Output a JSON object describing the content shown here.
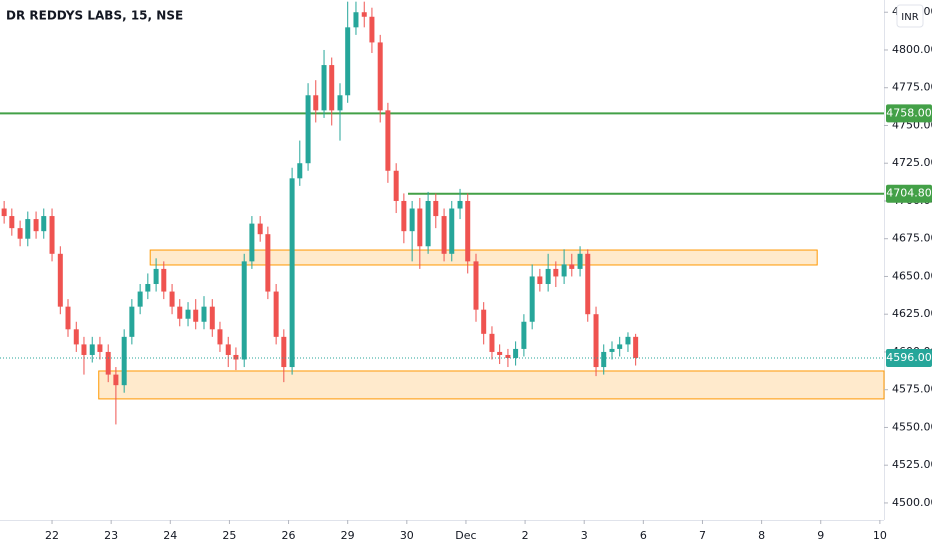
{
  "chart_data": {
    "type": "candlestick",
    "title": "DR REDDYS LABS, 15, NSE",
    "currency": "INR",
    "up_color": "#26a69a",
    "down_color": "#ef5350",
    "grid": false,
    "xlim": [
      -0.88,
      14.07
    ],
    "xticks": [
      {
        "value": 0,
        "label": "22"
      },
      {
        "value": 1,
        "label": "23"
      },
      {
        "value": 2,
        "label": "24"
      },
      {
        "value": 3,
        "label": "25"
      },
      {
        "value": 4,
        "label": "26"
      },
      {
        "value": 5,
        "label": "29"
      },
      {
        "value": 6,
        "label": "30"
      },
      {
        "value": 7,
        "label": "Dec"
      },
      {
        "value": 8,
        "label": "2"
      },
      {
        "value": 9,
        "label": "3"
      },
      {
        "value": 10,
        "label": "6"
      },
      {
        "value": 11,
        "label": "7"
      },
      {
        "value": 12,
        "label": "8"
      },
      {
        "value": 13,
        "label": "9"
      },
      {
        "value": 14,
        "label": "10"
      }
    ],
    "ylim": [
      4488.7,
      4833.1
    ],
    "yticks": [
      {
        "value": 4500,
        "label": "4500.00"
      },
      {
        "value": 4525,
        "label": "4525.00"
      },
      {
        "value": 4550,
        "label": "4550.00"
      },
      {
        "value": 4575,
        "label": "4575.00"
      },
      {
        "value": 4600,
        "label": "4600.00"
      },
      {
        "value": 4625,
        "label": "4625.00"
      },
      {
        "value": 4650,
        "label": "4650.00"
      },
      {
        "value": 4675,
        "label": "4675.00"
      },
      {
        "value": 4700,
        "label": "4700.00"
      },
      {
        "value": 4725,
        "label": "4725.00"
      },
      {
        "value": 4750,
        "label": "4750.00"
      },
      {
        "value": 4775,
        "label": "4775.00"
      },
      {
        "value": 4800,
        "label": "4800.00"
      },
      {
        "value": 4825,
        "label": "4825.00"
      }
    ],
    "x": [
      -0.81,
      -0.68,
      -0.54,
      -0.41,
      -0.27,
      -0.14,
      0.0,
      0.14,
      0.27,
      0.41,
      0.54,
      0.68,
      0.81,
      0.95,
      1.08,
      1.22,
      1.35,
      1.49,
      1.62,
      1.76,
      1.89,
      2.03,
      2.16,
      2.3,
      2.43,
      2.57,
      2.71,
      2.84,
      2.98,
      3.11,
      3.25,
      3.38,
      3.52,
      3.65,
      3.79,
      3.92,
      4.06,
      4.19,
      4.33,
      4.46,
      4.6,
      4.73,
      4.87,
      5.0,
      5.14,
      5.28,
      5.41,
      5.55,
      5.68,
      5.82,
      5.95,
      6.09,
      6.22,
      6.36,
      6.49,
      6.63,
      6.76,
      6.9,
      7.03,
      7.17,
      7.3,
      7.44,
      7.57,
      7.71,
      7.84,
      7.98,
      8.12,
      8.25,
      8.39,
      8.52,
      8.66,
      8.79,
      8.93,
      9.06,
      9.2,
      9.33,
      9.47,
      9.6,
      9.74,
      9.87
    ],
    "open": [
      4695,
      4690,
      4682,
      4675,
      4688,
      4680,
      4690,
      4665,
      4630,
      4615,
      4605,
      4598,
      4605,
      4600,
      4585,
      4578,
      4610,
      4630,
      4640,
      4645,
      4655,
      4640,
      4630,
      4622,
      4628,
      4620,
      4630,
      4615,
      4605,
      4598,
      4595,
      4660,
      4685,
      4678,
      4640,
      4610,
      4590,
      4715,
      4725,
      4770,
      4760,
      4790,
      4760,
      4770,
      4815,
      4825,
      4822,
      4805,
      4760,
      4720,
      4700,
      4680,
      4695,
      4670,
      4700,
      4690,
      4665,
      4695,
      4700,
      4660,
      4628,
      4612,
      4600,
      4598,
      4596,
      4602,
      4620,
      4650,
      4645,
      4655,
      4650,
      4658,
      4655,
      4665,
      4625,
      4590,
      4600,
      4602,
      4605,
      4610
    ],
    "high": [
      4700,
      4695,
      4687,
      4693,
      4693,
      4695,
      4695,
      4670,
      4635,
      4620,
      4610,
      4610,
      4610,
      4605,
      4590,
      4615,
      4635,
      4645,
      4652,
      4662,
      4660,
      4645,
      4635,
      4633,
      4635,
      4637,
      4635,
      4620,
      4610,
      4603,
      4665,
      4690,
      4690,
      4683,
      4645,
      4615,
      4722,
      4740,
      4778,
      4780,
      4800,
      4795,
      4778,
      4832,
      4832,
      4832,
      4828,
      4810,
      4765,
      4725,
      4705,
      4700,
      4702,
      4706,
      4705,
      4695,
      4700,
      4708,
      4705,
      4665,
      4633,
      4617,
      4605,
      4602,
      4607,
      4625,
      4658,
      4655,
      4665,
      4660,
      4668,
      4665,
      4670,
      4668,
      4630,
      4605,
      4607,
      4610,
      4613,
      4612
    ],
    "low": [
      4685,
      4677,
      4670,
      4670,
      4675,
      4675,
      4660,
      4625,
      4610,
      4600,
      4585,
      4593,
      4595,
      4580,
      4552,
      4573,
      4605,
      4625,
      4635,
      4640,
      4635,
      4625,
      4617,
      4617,
      4615,
      4615,
      4610,
      4600,
      4590,
      4588,
      4590,
      4655,
      4673,
      4635,
      4605,
      4580,
      4585,
      4710,
      4720,
      4752,
      4755,
      4750,
      4740,
      4765,
      4810,
      4815,
      4798,
      4752,
      4712,
      4692,
      4672,
      4660,
      4655,
      4665,
      4682,
      4660,
      4660,
      4688,
      4652,
      4620,
      4605,
      4595,
      4592,
      4590,
      4591,
      4597,
      4615,
      4640,
      4640,
      4643,
      4645,
      4650,
      4650,
      4620,
      4584,
      4585,
      4595,
      4597,
      4600,
      4591
    ],
    "close": [
      4690,
      4682,
      4675,
      4688,
      4680,
      4690,
      4665,
      4630,
      4615,
      4605,
      4598,
      4605,
      4600,
      4585,
      4578,
      4610,
      4630,
      4640,
      4645,
      4655,
      4640,
      4630,
      4622,
      4628,
      4620,
      4630,
      4615,
      4605,
      4598,
      4595,
      4660,
      4685,
      4678,
      4640,
      4610,
      4590,
      4715,
      4725,
      4770,
      4760,
      4790,
      4760,
      4770,
      4815,
      4825,
      4822,
      4805,
      4760,
      4720,
      4700,
      4680,
      4695,
      4670,
      4700,
      4690,
      4665,
      4695,
      4700,
      4660,
      4628,
      4612,
      4600,
      4598,
      4596,
      4602,
      4620,
      4650,
      4645,
      4655,
      4650,
      4658,
      4655,
      4665,
      4625,
      4590,
      4600,
      4602,
      4605,
      4610,
      4596
    ],
    "levels": [
      {
        "value": 4758,
        "label": "4758.00",
        "x_start": -0.88,
        "color": "#43a047"
      },
      {
        "value": 4704.8,
        "label": "4704.80",
        "x_start": 6.02,
        "color": "#43a047"
      }
    ],
    "zones": [
      {
        "low": 4657.6,
        "high": 4667.5,
        "x0": 1.66,
        "x1": 12.94
      },
      {
        "low": 4568.9,
        "high": 4587.4,
        "x0": 0.79,
        "x1": 14.07
      }
    ],
    "last_price": {
      "value": 4596,
      "label": "4596.00",
      "color": "#26a69a"
    }
  }
}
